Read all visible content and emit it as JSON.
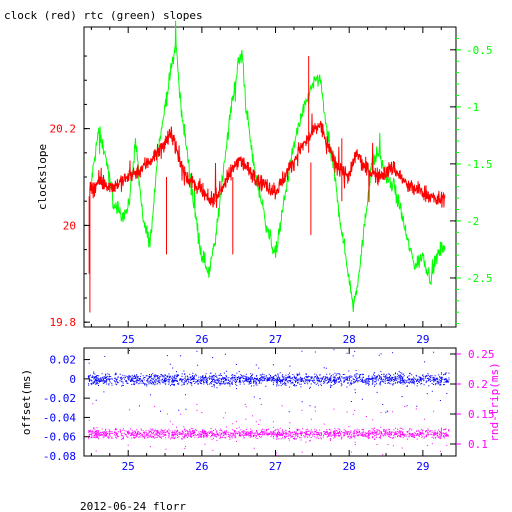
{
  "title": "clock (red) rtc (green) slopes",
  "footer": "2012-06-24 florr",
  "colors": {
    "clock": "#ff0000",
    "rtc": "#00ff00",
    "offset": "#0000ff",
    "rndtrip": "#ff00ff",
    "frame": "#000000"
  },
  "chart_data": [
    {
      "type": "line",
      "title": "clock (red) rtc (green) slopes",
      "xlim": [
        24.4,
        29.45
      ],
      "x_ticks": [
        25,
        26,
        27,
        28,
        29
      ],
      "x_tick_labels": [
        "25",
        "26",
        "27",
        "28",
        "29"
      ],
      "ylabel": "clockslope",
      "ylim": [
        19.79,
        20.41
      ],
      "y_ticks": [
        19.8,
        20,
        20.2
      ],
      "y_tick_labels": [
        "19.8",
        "20",
        "20.2"
      ],
      "y2lim": [
        -2.93,
        -0.3
      ],
      "y2_ticks": [
        -2.5,
        -2,
        -1.5,
        -1,
        -0.5
      ],
      "y2_tick_labels": [
        "-2.5",
        "-2",
        "-1.5",
        "-1",
        "-0.5"
      ],
      "grid": false,
      "series": [
        {
          "name": "clock",
          "axis": "left",
          "x": [
            24.48,
            24.6,
            24.8,
            25.0,
            25.2,
            25.4,
            25.5,
            25.6,
            25.7,
            25.8,
            26.0,
            26.1,
            26.2,
            26.4,
            26.5,
            26.6,
            26.8,
            27.0,
            27.2,
            27.35,
            27.5,
            27.6,
            27.8,
            28.0,
            28.1,
            28.2,
            28.4,
            28.6,
            28.8,
            29.0,
            29.2,
            29.3
          ],
          "y": [
            20.07,
            20.09,
            20.08,
            20.1,
            20.12,
            20.15,
            20.17,
            20.19,
            20.13,
            20.1,
            20.07,
            20.05,
            20.06,
            20.11,
            20.14,
            20.12,
            20.09,
            20.07,
            20.12,
            20.16,
            20.19,
            20.21,
            20.13,
            20.1,
            20.15,
            20.12,
            20.1,
            20.12,
            20.08,
            20.07,
            20.05,
            20.06
          ]
        },
        {
          "name": "rtc",
          "axis": "right",
          "x": [
            24.48,
            24.6,
            24.7,
            24.8,
            24.9,
            25.0,
            25.1,
            25.2,
            25.3,
            25.4,
            25.5,
            25.6,
            25.65,
            25.7,
            25.8,
            25.9,
            26.0,
            26.1,
            26.2,
            26.3,
            26.4,
            26.5,
            26.55,
            26.6,
            26.7,
            26.8,
            26.9,
            27.0,
            27.1,
            27.2,
            27.3,
            27.4,
            27.5,
            27.6,
            27.7,
            27.8,
            27.9,
            28.0,
            28.05,
            28.1,
            28.2,
            28.3,
            28.4,
            28.5,
            28.6,
            28.7,
            28.8,
            28.9,
            29.0,
            29.1,
            29.2,
            29.3
          ],
          "y": [
            -1.75,
            -1.2,
            -1.45,
            -1.85,
            -1.95,
            -1.9,
            -1.3,
            -2.0,
            -2.2,
            -1.4,
            -1.0,
            -0.6,
            -0.45,
            -0.9,
            -1.4,
            -1.9,
            -2.3,
            -2.45,
            -2.1,
            -1.5,
            -1.0,
            -0.6,
            -0.55,
            -1.0,
            -1.5,
            -1.8,
            -2.1,
            -2.3,
            -1.9,
            -1.5,
            -1.2,
            -1.0,
            -0.8,
            -0.75,
            -1.2,
            -1.6,
            -2.1,
            -2.5,
            -2.75,
            -2.6,
            -2.1,
            -1.5,
            -1.4,
            -1.6,
            -1.7,
            -1.9,
            -2.2,
            -2.4,
            -2.3,
            -2.5,
            -2.3,
            -2.2
          ]
        }
      ]
    },
    {
      "type": "scatter",
      "xlim": [
        24.4,
        29.45
      ],
      "x_ticks": [
        25,
        26,
        27,
        28,
        29
      ],
      "x_tick_labels": [
        "25",
        "26",
        "27",
        "28",
        "29"
      ],
      "ylabel": "offset(ms)",
      "ylim": [
        -0.08,
        0.032
      ],
      "y_ticks": [
        -0.08,
        -0.06,
        -0.04,
        -0.02,
        0,
        0.02
      ],
      "y_tick_labels": [
        "-0.08",
        "-0.06",
        "-0.04",
        "-0.02",
        "0",
        "0.02"
      ],
      "y2label": "rnd-trip(ms)",
      "y2lim": [
        0.08,
        0.26
      ],
      "y2_ticks": [
        0.1,
        0.15,
        0.2,
        0.25
      ],
      "y2_tick_labels": [
        "0.1",
        "0.15",
        "0.2",
        "0.25"
      ],
      "grid": false,
      "series": [
        {
          "name": "offset",
          "axis": "left",
          "x_range": [
            24.45,
            29.35
          ],
          "y_center": 0,
          "y_spread": 0.006
        },
        {
          "name": "rnd-trip",
          "axis": "right",
          "x_range": [
            24.45,
            29.35
          ],
          "y_center": 0.118,
          "y_spread": 0.008
        }
      ]
    }
  ]
}
